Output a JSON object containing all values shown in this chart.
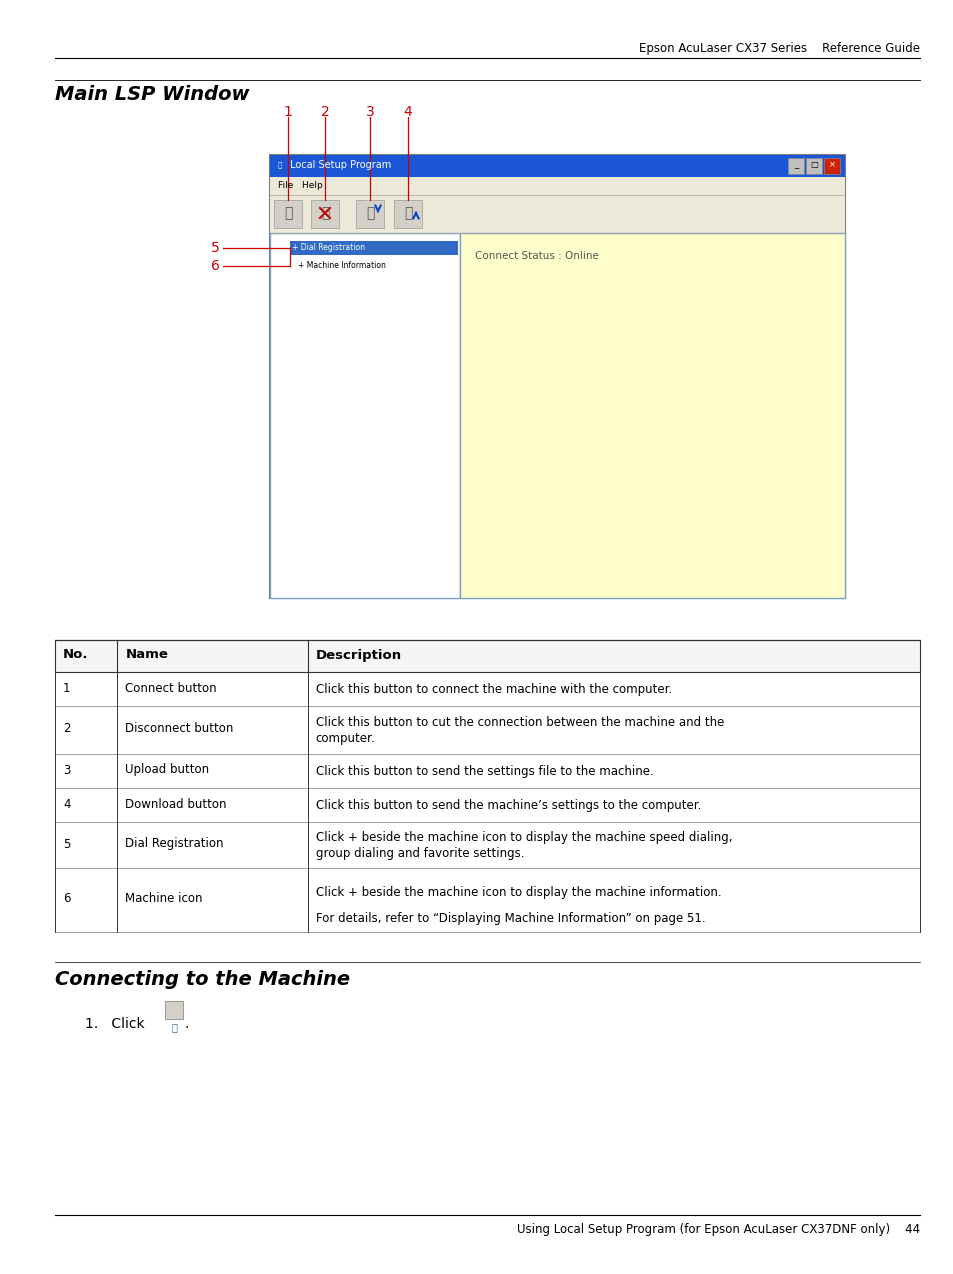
{
  "page_width": 9.54,
  "page_height": 12.74,
  "bg_color": "#ffffff",
  "header_text": "Epson AcuLaser CX37 Series    Reference Guide",
  "section1_title": "Main LSP Window",
  "section2_title": "Connecting to the Machine",
  "footer_text": "Using Local Setup Program (for Epson AcuLaser CX37DNF only)    44",
  "table_headers": [
    "No.",
    "Name",
    "Description"
  ],
  "table_rows": [
    [
      "1",
      "Connect button",
      "Click this button to connect the machine with the computer."
    ],
    [
      "2",
      "Disconnect button",
      "Click this button to cut the connection between the machine and the\ncomputer."
    ],
    [
      "3",
      "Upload button",
      "Click this button to send the settings file to the machine."
    ],
    [
      "4",
      "Download button",
      "Click this button to send the machine’s settings to the computer."
    ],
    [
      "5",
      "Dial Registration",
      "Click + beside the machine icon to display the machine speed dialing,\ngroup dialing and favorite settings."
    ],
    [
      "6",
      "Machine icon",
      "Click + beside the machine icon to display the machine information.\n\nFor details, refer to “Displaying Machine Information” on page 51."
    ]
  ],
  "label_color": "#cc0000",
  "win_titlebar_color": "#1a56d6",
  "win_bg_color": "#d4d0c8",
  "win_border_color": "#6b8fc4",
  "right_panel_color": "#ffffcc",
  "left_panel_color": "#ffffff",
  "tree_highlight_color": "#316ac5",
  "menu_bg": "#ece9d8"
}
